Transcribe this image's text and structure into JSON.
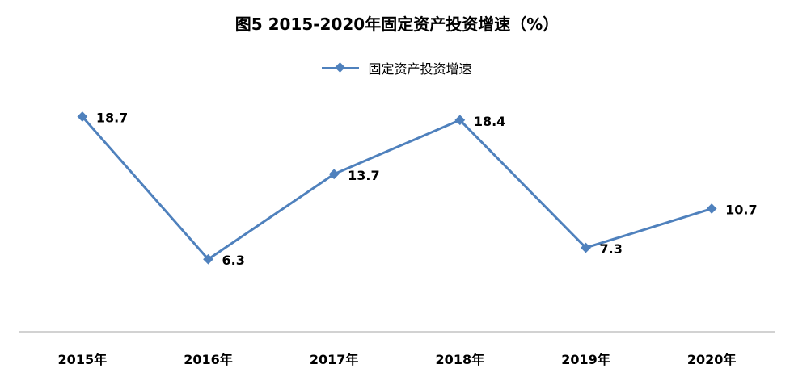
{
  "chart_data": {
    "type": "line",
    "title": "图5  2015-2020年固定资产投资增速（%）",
    "categories": [
      "2015年",
      "2016年",
      "2017年",
      "2018年",
      "2019年",
      "2020年"
    ],
    "series": [
      {
        "name": "固定资产投资增速",
        "values": [
          18.7,
          6.3,
          13.7,
          18.4,
          7.3,
          10.7
        ]
      }
    ],
    "data_labels": [
      "18.7",
      "6.3",
      "13.7",
      "18.4",
      "7.3",
      "10.7"
    ],
    "legend_position": "top",
    "grid": false,
    "color": "#4F81BD"
  }
}
